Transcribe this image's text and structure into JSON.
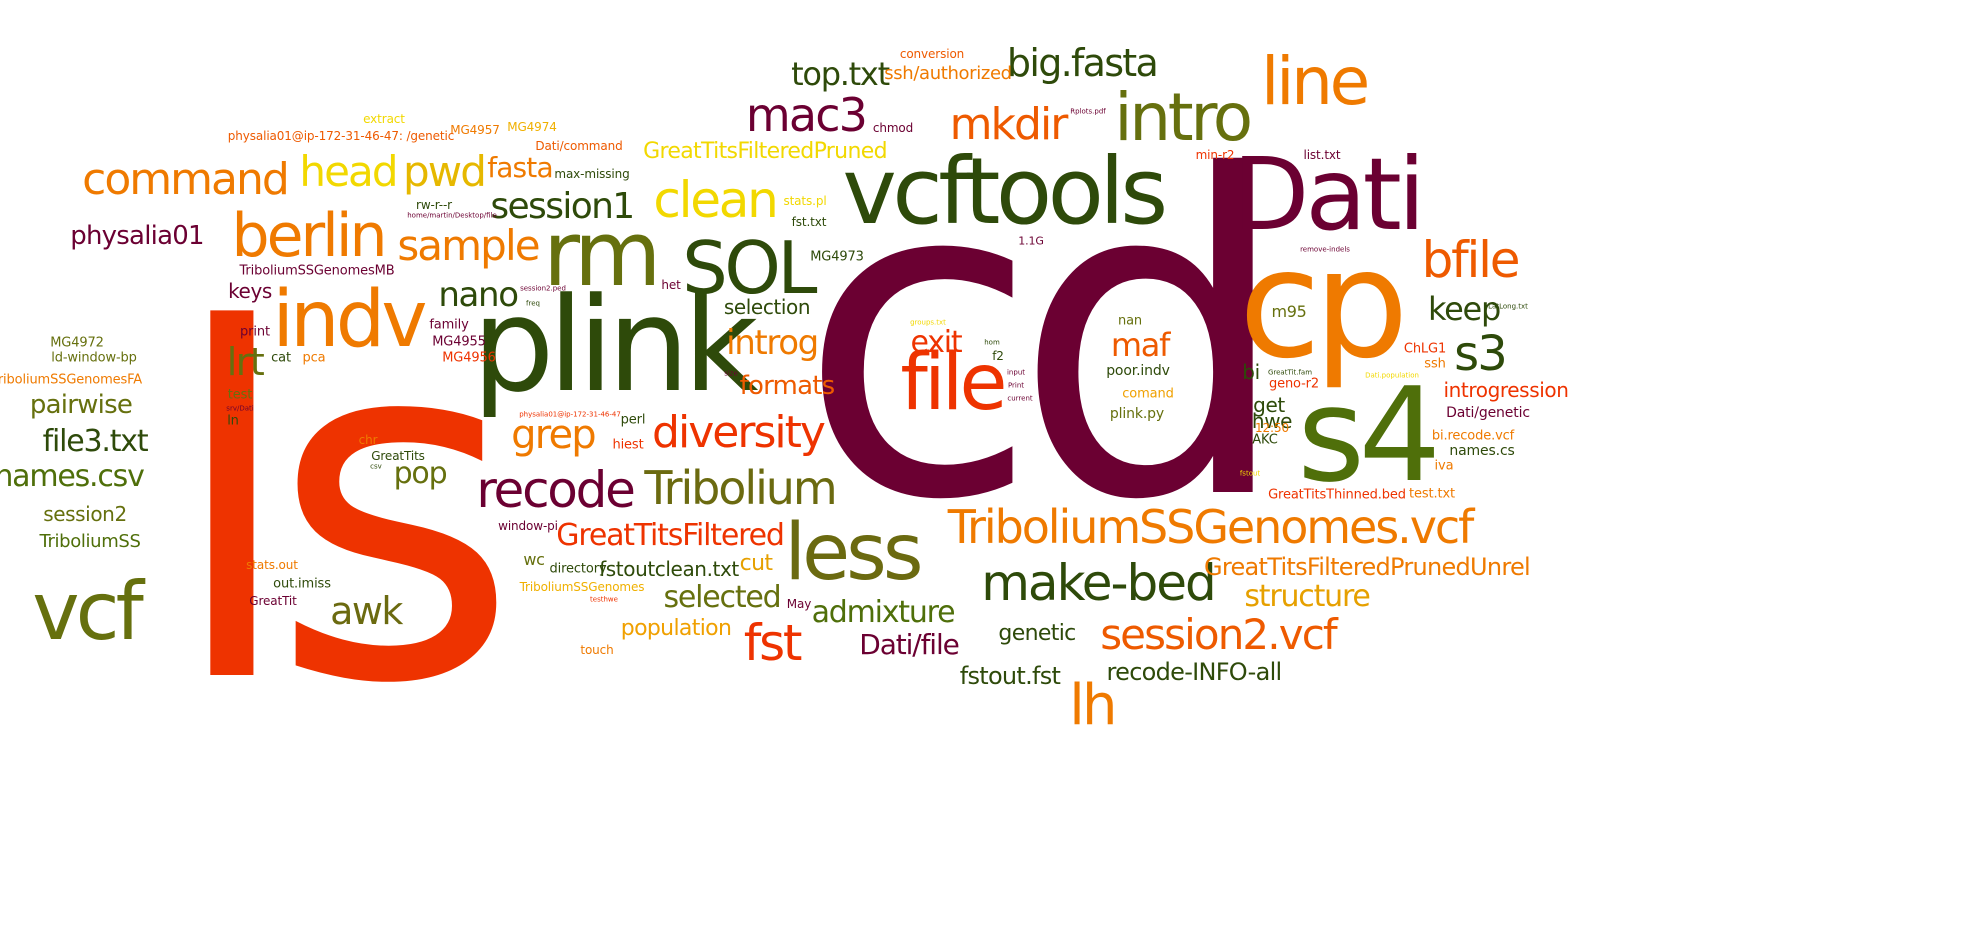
{
  "words": [
    {
      "text": "cd",
      "color": "#6b0032"
    },
    {
      "text": "ls",
      "color": "#ee3300"
    },
    {
      "text": "plink",
      "color": "#2e4a0a"
    },
    {
      "text": "vcftools",
      "color": "#2e4a0a"
    },
    {
      "text": "Dati",
      "color": "#6b0032"
    },
    {
      "text": "cp",
      "color": "#ef7a00"
    },
    {
      "text": "s4",
      "color": "#4f6f0a"
    },
    {
      "text": "file",
      "color": "#ee3300"
    },
    {
      "text": "rm",
      "color": "#66700e"
    },
    {
      "text": "SOL",
      "color": "#2e4a0a"
    },
    {
      "text": "indv",
      "color": "#ef7a00"
    },
    {
      "text": "less",
      "color": "#6b6a10"
    },
    {
      "text": "vcf",
      "color": "#66700e"
    },
    {
      "text": "intro",
      "color": "#66700e"
    },
    {
      "text": "line",
      "color": "#ef7a00"
    },
    {
      "text": "berlin",
      "color": "#ef7a00"
    },
    {
      "text": "make-bed",
      "color": "#2e4a0a"
    },
    {
      "text": "TriboliumSSGenomes.vcf",
      "color": "#ef7a00"
    },
    {
      "text": "recode",
      "color": "#6b0032"
    },
    {
      "text": "Tribolium",
      "color": "#6b6a10"
    },
    {
      "text": "mac3",
      "color": "#6b0032"
    },
    {
      "text": "clean",
      "color": "#f2d800"
    },
    {
      "text": "command",
      "color": "#ef7a00"
    },
    {
      "text": "diversity",
      "color": "#ee3300"
    },
    {
      "text": "session2.vcf",
      "color": "#ee5a00"
    },
    {
      "text": "lh",
      "color": "#ef7a00"
    },
    {
      "text": "mkdir",
      "color": "#ee5a00"
    },
    {
      "text": "bfile",
      "color": "#ee5a00"
    },
    {
      "text": "head",
      "color": "#f2d800"
    },
    {
      "text": "pwd",
      "color": "#e6b800"
    },
    {
      "text": "sample",
      "color": "#ef7a00"
    },
    {
      "text": "fst",
      "color": "#ee3300"
    },
    {
      "text": "s3",
      "color": "#2e4a0a"
    },
    {
      "text": "awk",
      "color": "#6b6a10"
    },
    {
      "text": "grep",
      "color": "#ef7a00"
    },
    {
      "text": "big.fasta",
      "color": "#2e4a0a"
    },
    {
      "text": "session1",
      "color": "#2e4a0a"
    },
    {
      "text": "top.txt",
      "color": "#2e4a0a"
    },
    {
      "text": "nano",
      "color": "#2e4a0a"
    },
    {
      "text": "lrt",
      "color": "#66700e"
    },
    {
      "text": "introg",
      "color": "#ef7a00"
    },
    {
      "text": "GreatTitsFiltered",
      "color": "#ee3300"
    },
    {
      "text": "exit",
      "color": "#ee3300"
    },
    {
      "text": "maf",
      "color": "#ee5a00"
    },
    {
      "text": "keep",
      "color": "#2e4a0a"
    },
    {
      "text": "physalia01",
      "color": "#6b0032"
    },
    {
      "text": "fasta",
      "color": "#ef7a00"
    },
    {
      "text": "selected",
      "color": "#66700e"
    },
    {
      "text": "admixture",
      "color": "#4f6f0a"
    },
    {
      "text": "structure",
      "color": "#e6a000"
    },
    {
      "text": "GreatTitsFilteredPrunedUnrel",
      "color": "#ef7a00"
    },
    {
      "text": "Dati/file",
      "color": "#6b0032"
    },
    {
      "text": "names.csv",
      "color": "#4f6f0a"
    },
    {
      "text": "file3.txt",
      "color": "#2e4a0a"
    },
    {
      "text": "pairwise",
      "color": "#66700e"
    },
    {
      "text": "pop",
      "color": "#66700e"
    },
    {
      "text": "formats",
      "color": "#ee5a00"
    },
    {
      "text": "GreatTitsFilteredPruned",
      "color": "#f2d800"
    },
    {
      "text": "recode-INFO-all",
      "color": "#2e4a0a"
    },
    {
      "text": "fstout.fst",
      "color": "#2e4a0a"
    },
    {
      "text": "genetic",
      "color": "#2e4a0a"
    },
    {
      "text": "population",
      "color": "#f0a000"
    },
    {
      "text": "selection",
      "color": "#2e4a0a"
    },
    {
      "text": "ssh/authorized",
      "color": "#ef7a00"
    },
    {
      "text": "keys",
      "color": "#6b0032"
    },
    {
      "text": "cut",
      "color": "#e6a000"
    },
    {
      "text": "fstoutclean.txt",
      "color": "#2e4a0a"
    },
    {
      "text": "introgression",
      "color": "#ee3300"
    },
    {
      "text": "session2",
      "color": "#66700e"
    },
    {
      "text": "TriboliumSS",
      "color": "#4f6f0a"
    },
    {
      "text": "get",
      "color": "#2e4a0a"
    },
    {
      "text": "hwe",
      "color": "#2e4a0a"
    },
    {
      "text": "bi",
      "color": "#2e4a0a"
    },
    {
      "text": "m95",
      "color": "#66700e"
    },
    {
      "text": "wc",
      "color": "#66700e"
    },
    {
      "text": "TriboliumSSGenomesMB",
      "color": "#6b0032"
    },
    {
      "text": "ld-window-bp",
      "color": "#66700e"
    },
    {
      "text": "MG4972",
      "color": "#66700e"
    },
    {
      "text": "TriboliumSSGenomesFA",
      "color": "#ef7a00"
    },
    {
      "text": "Dati/genetic",
      "color": "#6b0032"
    },
    {
      "text": "poor.indv",
      "color": "#2e4a0a"
    },
    {
      "text": "plink.py",
      "color": "#66700e"
    },
    {
      "text": "names.cs",
      "color": "#2e4a0a"
    },
    {
      "text": "bi.recode.vcf",
      "color": "#ef7a00"
    },
    {
      "text": "iva",
      "color": "#ef7a00"
    },
    {
      "text": "test.txt",
      "color": "#ef7a00"
    },
    {
      "text": "GreatTitsThinned.bed",
      "color": "#ee3300"
    },
    {
      "text": "AKC",
      "color": "#2e4a0a"
    },
    {
      "text": "ChLG1",
      "color": "#ee3300"
    },
    {
      "text": "ssh",
      "color": "#ef7a00"
    },
    {
      "text": "geno-r2",
      "color": "#ee3300"
    },
    {
      "text": "12:50",
      "color": "#ef7a00"
    },
    {
      "text": "comand",
      "color": "#f0a000"
    },
    {
      "text": "nan",
      "color": "#66700e"
    },
    {
      "text": "MG4973",
      "color": "#2e4a0a"
    },
    {
      "text": "family",
      "color": "#6b0032"
    },
    {
      "text": "MG4955",
      "color": "#6b0032"
    },
    {
      "text": "MG4956",
      "color": "#ee3300"
    },
    {
      "text": "print",
      "color": "#6b0032"
    },
    {
      "text": "cat",
      "color": "#2e4a0a"
    },
    {
      "text": "pca",
      "color": "#ef7a00"
    },
    {
      "text": "test",
      "color": "#66700e"
    },
    {
      "text": "ln",
      "color": "#2e4a0a"
    },
    {
      "text": "chr",
      "color": "#ef7a00"
    },
    {
      "text": "GreatTits",
      "color": "#2e4a0a"
    },
    {
      "text": "stats.out",
      "color": "#ef7a00"
    },
    {
      "text": "out.imiss",
      "color": "#2e4a0a"
    },
    {
      "text": "GreatTit",
      "color": "#6b0032"
    },
    {
      "text": "directory",
      "color": "#2e4a0a"
    },
    {
      "text": "TriboliumSSGenomes",
      "color": "#f0b000"
    },
    {
      "text": "touch",
      "color": "#ef7a00"
    },
    {
      "text": "May",
      "color": "#6b0032"
    },
    {
      "text": "window-pi",
      "color": "#6b0032"
    },
    {
      "text": "hiest",
      "color": "#ee3300"
    },
    {
      "text": "perl",
      "color": "#2e4a0a"
    },
    {
      "text": "het",
      "color": "#6b0032"
    },
    {
      "text": "max-missing",
      "color": "#2e4a0a"
    },
    {
      "text": "Dati/command",
      "color": "#ee5a00"
    },
    {
      "text": "MG4974",
      "color": "#f0b000"
    },
    {
      "text": "MG4957",
      "color": "#ef7a00"
    },
    {
      "text": "physalia01@ip-172-31-46-47: /genetic",
      "color": "#ee5a00"
    },
    {
      "text": "extract",
      "color": "#f2d800"
    },
    {
      "text": "rw-r--r",
      "color": "#2e4a0a"
    },
    {
      "text": "chmod",
      "color": "#6b0032"
    },
    {
      "text": "conversion",
      "color": "#ee5a00"
    },
    {
      "text": "stats.pl",
      "color": "#f2d800"
    },
    {
      "text": "fst.txt",
      "color": "#2e4a0a"
    },
    {
      "text": "1.1G",
      "color": "#6b0032"
    },
    {
      "text": "f2",
      "color": "#2e4a0a"
    },
    {
      "text": "min-r2",
      "color": "#ee3300"
    },
    {
      "text": "list.txt",
      "color": "#6b0032"
    },
    {
      "text": "Rplots.pdf",
      "color": "#6b0032"
    },
    {
      "text": "remove-indels",
      "color": "#6b0032"
    },
    {
      "text": "LatLong.txt",
      "color": "#2e4a0a"
    },
    {
      "text": "home/martin/Desktop/file",
      "color": "#6b0032"
    },
    {
      "text": "session2.ped",
      "color": "#6b0032"
    },
    {
      "text": "freq",
      "color": "#2e4a0a"
    },
    {
      "text": "srv/Dati",
      "color": "#6b0032"
    },
    {
      "text": "csv",
      "color": "#2e4a0a"
    },
    {
      "text": "physalia01@ip-172-31-46-47",
      "color": "#ee3300"
    },
    {
      "text": "size",
      "color": "#6b0032"
    },
    {
      "text": "testhwe",
      "color": "#ee3300"
    },
    {
      "text": "hom",
      "color": "#2e4a0a"
    },
    {
      "text": "input",
      "color": "#6b0032"
    },
    {
      "text": "Print",
      "color": "#6b0032"
    },
    {
      "text": "current",
      "color": "#6b0032"
    },
    {
      "text": "groups.txt",
      "color": "#f2d800"
    },
    {
      "text": "GreatTit.fam",
      "color": "#2e4a0a"
    },
    {
      "text": "Dati.population",
      "color": "#f2d800"
    },
    {
      "text": "fstout",
      "color": "#f2d800"
    }
  ]
}
